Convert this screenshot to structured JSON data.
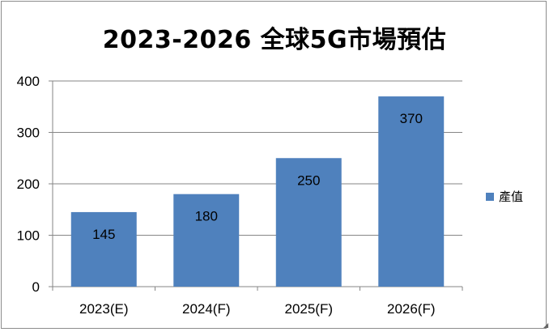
{
  "chart_data": {
    "type": "bar",
    "title": "2023-2026 全球5G市場預估",
    "categories": [
      "2023(E)",
      "2024(F)",
      "2025(F)",
      "2026(F)"
    ],
    "series": [
      {
        "name": "產值",
        "values": [
          145,
          180,
          250,
          370
        ],
        "color": "#4f81bd"
      }
    ],
    "data_labels": [
      "145",
      "180",
      "250",
      "370"
    ],
    "ylim": [
      0,
      400
    ],
    "yticks": [
      0,
      100,
      200,
      300,
      400
    ],
    "grid": true,
    "legend": "right"
  }
}
